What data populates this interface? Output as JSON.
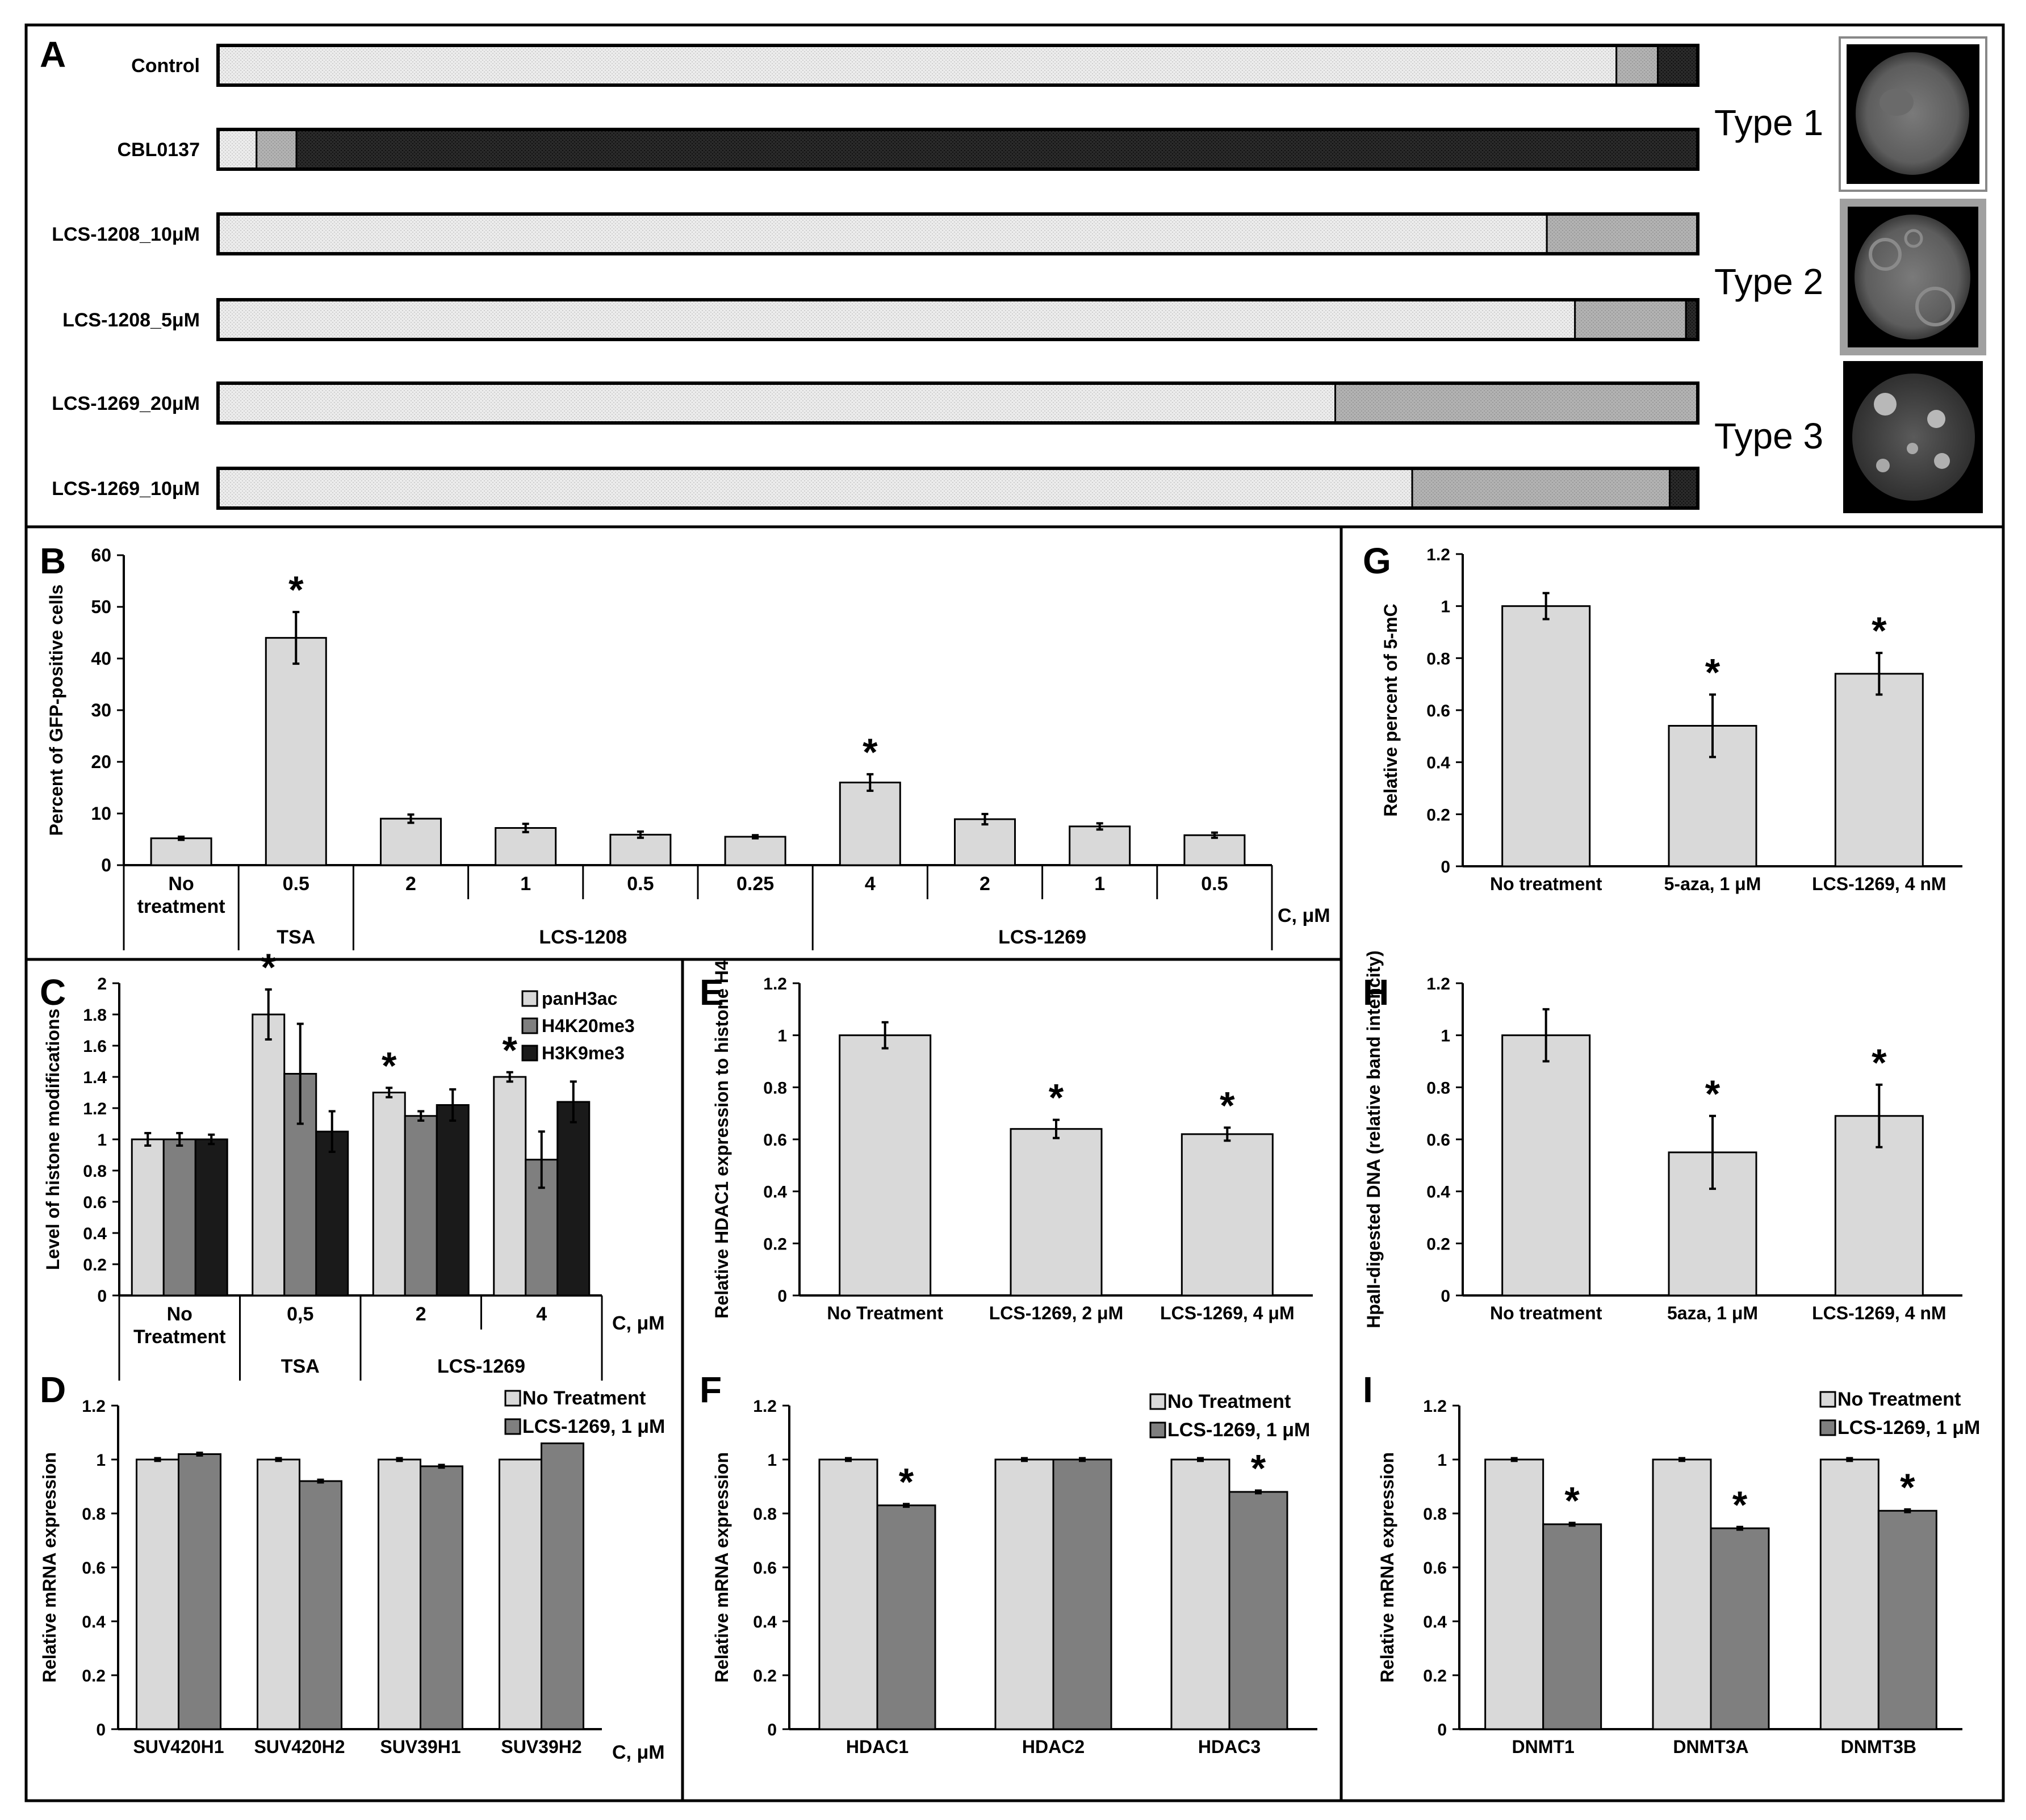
{
  "figure_title": "",
  "panels": {
    "A": {
      "letter": "A"
    },
    "B": {
      "letter": "B"
    },
    "C": {
      "letter": "C"
    },
    "D": {
      "letter": "D"
    },
    "E": {
      "letter": "E"
    },
    "F": {
      "letter": "F"
    },
    "G": {
      "letter": "G"
    },
    "H": {
      "letter": "H"
    },
    "I": {
      "letter": "I"
    }
  },
  "colors": {
    "light": "#d9d9d9",
    "medium": "#a6a6a6",
    "mid_dark": "#7f7f7f",
    "dark": "#1a1a1a",
    "frame": "#000000"
  },
  "chart_data": [
    {
      "panel": "A",
      "type": "bar",
      "orientation": "horizontal-stacked",
      "categories": [
        "Control",
        "CBL0137",
        "LCS-1208_10μM",
        "LCS-1208_5μM",
        "LCS-1269_20μM",
        "LCS-1269_10μM"
      ],
      "series": [
        {
          "name": "Type 1",
          "values": [
            94.5,
            2.6,
            89.8,
            91.7,
            75.5,
            80.7
          ]
        },
        {
          "name": "Type 2",
          "values": [
            2.8,
            2.7,
            10.2,
            7.5,
            24.5,
            17.4
          ]
        },
        {
          "name": "Type 3",
          "values": [
            2.7,
            94.7,
            0.0,
            0.8,
            0.0,
            1.9
          ]
        }
      ],
      "legend_labels": [
        "Type 1",
        "Type 2",
        "Type 3"
      ],
      "xlim": [
        0,
        100
      ]
    },
    {
      "panel": "B",
      "type": "bar",
      "ylabel": "Percent of GFP-positive cells",
      "ylim": [
        0,
        60
      ],
      "yticks": [
        0,
        10,
        20,
        30,
        40,
        50,
        60
      ],
      "categories": [
        "No treatment",
        "0.5",
        "2",
        "1",
        "0.5",
        "0.25",
        "4",
        "2",
        "1",
        "0.5"
      ],
      "groups": [
        {
          "label": "",
          "span": [
            0,
            0
          ]
        },
        {
          "label": "TSA",
          "span": [
            1,
            1
          ]
        },
        {
          "label": "LCS-1208",
          "span": [
            2,
            5
          ]
        },
        {
          "label": "LCS-1269",
          "span": [
            6,
            9
          ]
        }
      ],
      "unit_label": "C, μM",
      "values": [
        5.2,
        44,
        9,
        7.2,
        5.9,
        5.5,
        16,
        8.9,
        7.5,
        5.8
      ],
      "errors": [
        0.3,
        5,
        0.8,
        0.8,
        0.6,
        0.3,
        1.6,
        1,
        0.6,
        0.5
      ],
      "significant": [
        false,
        true,
        false,
        false,
        false,
        false,
        true,
        false,
        false,
        false
      ]
    },
    {
      "panel": "C",
      "type": "bar",
      "ylabel": "Level of histone modifications",
      "ylim": [
        0,
        2
      ],
      "yticks": [
        "0",
        "0.2",
        "0.4",
        "0.6",
        "0.8",
        "1",
        "1.2",
        "1.4",
        "1.6",
        "1.8",
        "2"
      ],
      "categories": [
        "No Treatment",
        "0,5",
        "2",
        "4"
      ],
      "groups": [
        {
          "label": "",
          "span": [
            0,
            0
          ]
        },
        {
          "label": "TSA",
          "span": [
            1,
            1
          ]
        },
        {
          "label": "LCS-1269",
          "span": [
            2,
            3
          ]
        }
      ],
      "unit_label": "C, μM",
      "series": [
        {
          "name": "panH3ac",
          "values": [
            1,
            1.8,
            1.3,
            1.4
          ],
          "errors": [
            0.04,
            0.16,
            0.03,
            0.03
          ]
        },
        {
          "name": "H4K20me3",
          "values": [
            1,
            1.42,
            1.15,
            0.87
          ],
          "errors": [
            0.04,
            0.32,
            0.03,
            0.18
          ]
        },
        {
          "name": "H3K9me3",
          "values": [
            1,
            1.05,
            1.22,
            1.24
          ],
          "errors": [
            0.03,
            0.13,
            0.1,
            0.13
          ]
        }
      ],
      "significant": [
        false,
        true,
        true,
        true
      ]
    },
    {
      "panel": "D",
      "type": "bar",
      "ylabel": "Relative mRNA expression",
      "ylim": [
        0,
        1.2
      ],
      "yticks": [
        "0",
        "0.2",
        "0.4",
        "0.6",
        "0.8",
        "1",
        "1.2"
      ],
      "categories": [
        "SUV420H1",
        "SUV420H2",
        "SUV39H1",
        "SUV39H2"
      ],
      "unit_label": "C, μM",
      "series": [
        {
          "name": "No Treatment",
          "values": [
            1,
            1,
            1,
            1
          ],
          "errors": [
            0.005,
            0.005,
            0.005,
            0
          ]
        },
        {
          "name": "LCS-1269, 1 μM",
          "values": [
            1.02,
            0.92,
            0.975,
            1.06
          ],
          "errors": [
            0.005,
            0.005,
            0.005,
            0
          ]
        }
      ],
      "significant": [
        false,
        false,
        false,
        false
      ]
    },
    {
      "panel": "E",
      "type": "bar",
      "ylabel": "Relative HDAC1 expression to histone H4",
      "ylim": [
        0,
        1.2
      ],
      "yticks": [
        "0",
        "0.2",
        "0.4",
        "0.6",
        "0.8",
        "1",
        "1.2"
      ],
      "categories": [
        "No Treatment",
        "LCS-1269, 2 μM",
        "LCS-1269, 4 μM"
      ],
      "values": [
        1,
        0.64,
        0.62
      ],
      "errors": [
        0.05,
        0.035,
        0.025
      ],
      "significant": [
        false,
        true,
        true
      ]
    },
    {
      "panel": "F",
      "type": "bar",
      "ylabel": "Relative mRNA expression",
      "ylim": [
        0,
        1.2
      ],
      "yticks": [
        "0",
        "0.2",
        "0.4",
        "0.6",
        "0.8",
        "1",
        "1.2"
      ],
      "categories": [
        "HDAC1",
        "HDAC2",
        "HDAC3"
      ],
      "series": [
        {
          "name": "No Treatment",
          "values": [
            1,
            1,
            1
          ],
          "errors": [
            0.005,
            0.005,
            0.005
          ]
        },
        {
          "name": "LCS-1269, 1 μM",
          "values": [
            0.83,
            1,
            0.88
          ],
          "errors": [
            0.005,
            0.005,
            0.005
          ]
        }
      ],
      "significant": [
        true,
        false,
        true
      ]
    },
    {
      "panel": "G",
      "type": "bar",
      "ylabel": "Relative percent of 5-mC",
      "ylim": [
        0,
        1.2
      ],
      "yticks": [
        "0",
        "0.2",
        "0.4",
        "0.6",
        "0.8",
        "1",
        "1.2"
      ],
      "categories": [
        "No treatment",
        "5-aza, 1 μM",
        "LCS-1269, 4 nM"
      ],
      "values": [
        1,
        0.54,
        0.74
      ],
      "errors": [
        0.05,
        0.12,
        0.08
      ],
      "significant": [
        false,
        true,
        true
      ]
    },
    {
      "panel": "H",
      "type": "bar",
      "ylabel": "HpaII-digested DNA (relative band intencity)",
      "ylim": [
        0,
        1.2
      ],
      "yticks": [
        "0",
        "0.2",
        "0.4",
        "0.6",
        "0.8",
        "1",
        "1.2"
      ],
      "categories": [
        "No treatment",
        "5aza, 1 μM",
        "LCS-1269, 4 nM"
      ],
      "values": [
        1,
        0.55,
        0.69
      ],
      "errors": [
        0.1,
        0.14,
        0.12
      ],
      "significant": [
        false,
        true,
        true
      ]
    },
    {
      "panel": "I",
      "type": "bar",
      "ylabel": "Relative mRNA expression",
      "ylim": [
        0,
        1.2
      ],
      "yticks": [
        "0",
        "0.2",
        "0.4",
        "0.6",
        "0.8",
        "1",
        "1.2"
      ],
      "categories": [
        "DNMT1",
        "DNMT3A",
        "DNMT3B"
      ],
      "series": [
        {
          "name": "No Treatment",
          "values": [
            1,
            1,
            1
          ],
          "errors": [
            0.005,
            0.005,
            0.005
          ]
        },
        {
          "name": "LCS-1269, 1 μM",
          "values": [
            0.76,
            0.745,
            0.81
          ],
          "errors": [
            0.005,
            0.005,
            0.005
          ]
        }
      ],
      "significant": [
        true,
        true,
        true
      ]
    }
  ]
}
